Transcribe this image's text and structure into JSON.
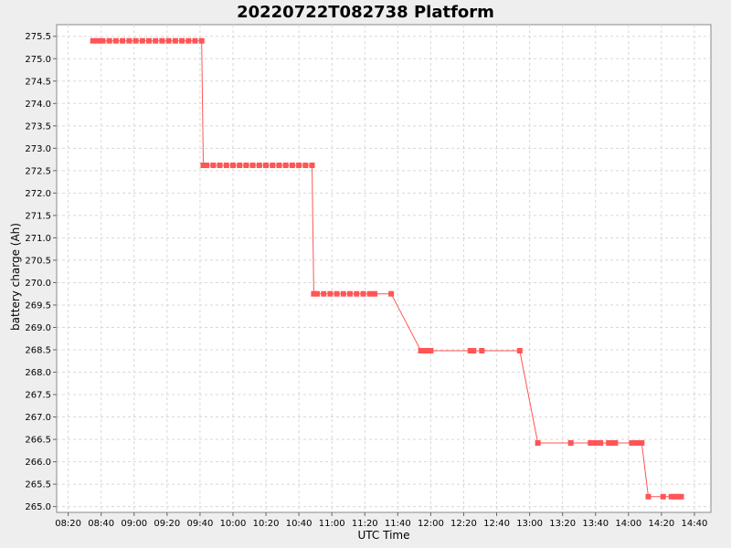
{
  "chart_data": {
    "type": "line",
    "title": "20220722T082738 Platform",
    "xlabel": "UTC Time",
    "ylabel": "battery charge (Ah)",
    "x_ticks": [
      "08:20",
      "08:40",
      "09:00",
      "09:20",
      "09:40",
      "10:00",
      "10:20",
      "10:40",
      "11:00",
      "11:20",
      "11:40",
      "12:00",
      "12:20",
      "12:40",
      "13:00",
      "13:20",
      "13:40",
      "14:00",
      "14:20",
      "14:40"
    ],
    "y_ticks": [
      "265.0",
      "265.5",
      "266.0",
      "266.5",
      "267.0",
      "267.5",
      "268.0",
      "268.5",
      "269.0",
      "269.5",
      "270.0",
      "270.5",
      "271.0",
      "271.5",
      "272.0",
      "272.5",
      "273.0",
      "273.5",
      "274.0",
      "274.5",
      "275.0",
      "275.5"
    ],
    "xlim": [
      "08:13",
      "14:50"
    ],
    "ylim": [
      264.87,
      275.76
    ],
    "grid": true,
    "series": [
      {
        "color": "#ff5555",
        "x": [
          "08:35",
          "08:38",
          "08:41",
          "08:45",
          "08:49",
          "08:53",
          "08:57",
          "09:01",
          "09:05",
          "09:09",
          "09:13",
          "09:17",
          "09:21",
          "09:25",
          "09:29",
          "09:33",
          "09:37",
          "09:41",
          "09:42",
          "09:44",
          "09:48",
          "09:52",
          "09:56",
          "10:00",
          "10:04",
          "10:08",
          "10:12",
          "10:16",
          "10:20",
          "10:24",
          "10:28",
          "10:32",
          "10:36",
          "10:40",
          "10:44",
          "10:48",
          "10:49",
          "10:51",
          "10:55",
          "10:59",
          "11:03",
          "11:07",
          "11:11",
          "11:15",
          "11:19",
          "11:23",
          "11:26",
          "11:36",
          "11:54",
          "11:56",
          "11:58",
          "12:00",
          "12:24",
          "12:26",
          "12:31",
          "12:54",
          "13:05",
          "13:25",
          "13:37",
          "13:39",
          "13:41",
          "13:43",
          "13:48",
          "13:50",
          "13:52",
          "14:02",
          "14:04",
          "14:06",
          "14:08",
          "14:12",
          "14:21",
          "14:26",
          "14:28",
          "14:30",
          "14:32"
        ],
        "y": [
          275.4,
          275.4,
          275.4,
          275.4,
          275.4,
          275.4,
          275.4,
          275.4,
          275.4,
          275.4,
          275.4,
          275.4,
          275.4,
          275.4,
          275.4,
          275.4,
          275.4,
          275.4,
          272.62,
          272.62,
          272.62,
          272.62,
          272.62,
          272.62,
          272.62,
          272.62,
          272.62,
          272.62,
          272.62,
          272.62,
          272.62,
          272.62,
          272.62,
          272.62,
          272.62,
          272.62,
          269.75,
          269.75,
          269.75,
          269.75,
          269.75,
          269.75,
          269.75,
          269.75,
          269.75,
          269.75,
          269.75,
          269.75,
          268.48,
          268.48,
          268.48,
          268.48,
          268.48,
          268.48,
          268.48,
          268.48,
          266.42,
          266.42,
          266.42,
          266.42,
          266.42,
          266.42,
          266.42,
          266.42,
          266.42,
          266.42,
          266.42,
          266.42,
          266.42,
          265.22,
          265.22,
          265.22,
          265.22,
          265.22,
          265.22
        ]
      }
    ]
  }
}
